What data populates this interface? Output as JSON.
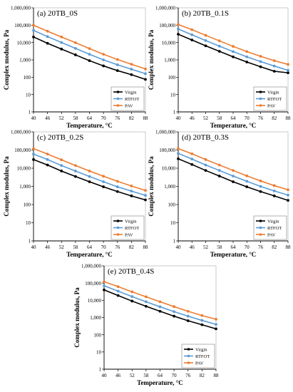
{
  "colors": {
    "Virgin": "#000000",
    "RTFOT": "#5b9bd5",
    "PAV": "#ed7d31"
  },
  "chart_data": [
    {
      "type": "line",
      "title": "(a) 20TB_0S",
      "xlabel": "Temperature, °C",
      "ylabel": "Complex modulus, Pa",
      "x": [
        40,
        46,
        52,
        58,
        64,
        70,
        76,
        82,
        88
      ],
      "xticks": [
        "40",
        "46",
        "52",
        "58",
        "64",
        "70",
        "76",
        "82",
        "88"
      ],
      "yscale": "log",
      "ylim": [
        1,
        1000000
      ],
      "yticks": [
        "1",
        "10",
        "100",
        "1,000",
        "10,000",
        "100,000",
        "1,000,000"
      ],
      "series": [
        {
          "name": "Virgin",
          "values": [
            21000,
            9000,
            4200,
            1950,
            900,
            450,
            240,
            140,
            75
          ]
        },
        {
          "name": "RTFOT",
          "values": [
            50000,
            22000,
            10000,
            4600,
            2100,
            1000,
            520,
            290,
            160
          ]
        },
        {
          "name": "PAV",
          "values": [
            100000,
            45000,
            21000,
            9800,
            4500,
            2100,
            1050,
            560,
            300
          ]
        }
      ],
      "legend": "bottom-right"
    },
    {
      "type": "line",
      "title": "(b) 20TB_0.1S",
      "xlabel": "Temperature, °C",
      "ylabel": "Complex modulus, Pa",
      "x": [
        40,
        46,
        52,
        58,
        64,
        70,
        76,
        82,
        88
      ],
      "xticks": [
        "40",
        "46",
        "52",
        "58",
        "64",
        "70",
        "76",
        "82",
        "88"
      ],
      "yscale": "log",
      "ylim": [
        1,
        1000000
      ],
      "yticks": [
        "1",
        "10",
        "100",
        "1,000",
        "10,000",
        "100,000",
        "1,000,000"
      ],
      "series": [
        {
          "name": "Virgin",
          "values": [
            30000,
            14000,
            6500,
            3100,
            1500,
            750,
            400,
            220,
            180
          ]
        },
        {
          "name": "RTFOT",
          "values": [
            60000,
            28000,
            13000,
            6200,
            3000,
            1500,
            800,
            440,
            250
          ]
        },
        {
          "name": "PAV",
          "values": [
            110000,
            55000,
            26000,
            12500,
            6000,
            3000,
            1600,
            900,
            550
          ]
        }
      ],
      "legend": "bottom-right"
    },
    {
      "type": "line",
      "title": "(c) 20TB_0.2S",
      "xlabel": "Temperature, °C",
      "ylabel": "Complex modulus, Pa",
      "x": [
        40,
        46,
        52,
        58,
        64,
        70,
        76,
        82,
        88
      ],
      "xticks": [
        "40",
        "46",
        "52",
        "58",
        "64",
        "70",
        "76",
        "82",
        "88"
      ],
      "yscale": "log",
      "ylim": [
        1,
        1000000
      ],
      "yticks": [
        "1",
        "10",
        "100",
        "1,000",
        "10,000",
        "100,000",
        "1,000,000"
      ],
      "series": [
        {
          "name": "Virgin",
          "values": [
            30000,
            15000,
            7000,
            3500,
            1800,
            950,
            520,
            300,
            180
          ]
        },
        {
          "name": "RTFOT",
          "values": [
            60000,
            30000,
            14000,
            7000,
            3500,
            1800,
            950,
            550,
            320
          ]
        },
        {
          "name": "PAV",
          "values": [
            120000,
            60000,
            29000,
            14000,
            7000,
            3600,
            1900,
            1050,
            600
          ]
        }
      ],
      "legend": "bottom-right"
    },
    {
      "type": "line",
      "title": "(d) 20TB_0.3S",
      "xlabel": "Temperature, °C",
      "ylabel": "Complex modulus, Pa",
      "x": [
        40,
        46,
        52,
        58,
        64,
        70,
        76,
        82,
        88
      ],
      "xticks": [
        "40",
        "46",
        "52",
        "58",
        "64",
        "70",
        "76",
        "82",
        "88"
      ],
      "yscale": "log",
      "ylim": [
        1,
        1000000
      ],
      "yticks": [
        "1",
        "10",
        "100",
        "1,000",
        "10,000",
        "100,000",
        "1,000,000"
      ],
      "series": [
        {
          "name": "Virgin",
          "values": [
            33000,
            16000,
            7500,
            3700,
            1800,
            950,
            520,
            300,
            170
          ]
        },
        {
          "name": "RTFOT",
          "values": [
            65000,
            32000,
            15000,
            7500,
            3700,
            1900,
            1000,
            560,
            330
          ]
        },
        {
          "name": "PAV",
          "values": [
            120000,
            62000,
            30000,
            15000,
            7500,
            3800,
            2000,
            1100,
            650
          ]
        }
      ],
      "legend": "bottom-right"
    },
    {
      "type": "line",
      "title": "(e) 20TB_0.4S",
      "xlabel": "Temperature, °C",
      "ylabel": "Complex modulus, Pa",
      "x": [
        40,
        46,
        52,
        58,
        64,
        70,
        76,
        82,
        88
      ],
      "xticks": [
        "40",
        "46",
        "52",
        "58",
        "64",
        "70",
        "76",
        "82",
        "88"
      ],
      "yscale": "log",
      "ylim": [
        1,
        1000000
      ],
      "yticks": [
        "1",
        "10",
        "100",
        "1,000",
        "10,000",
        "100,000",
        "1,000,000"
      ],
      "series": [
        {
          "name": "Virgin",
          "values": [
            40000,
            19000,
            9000,
            4500,
            2300,
            1200,
            650,
            380,
            220
          ]
        },
        {
          "name": "RTFOT",
          "values": [
            70000,
            34000,
            16500,
            8200,
            4200,
            2200,
            1200,
            680,
            400
          ]
        },
        {
          "name": "PAV",
          "values": [
            120000,
            62000,
            31000,
            16000,
            8200,
            4300,
            2300,
            1300,
            800
          ]
        }
      ],
      "legend": "bottom-right"
    }
  ]
}
